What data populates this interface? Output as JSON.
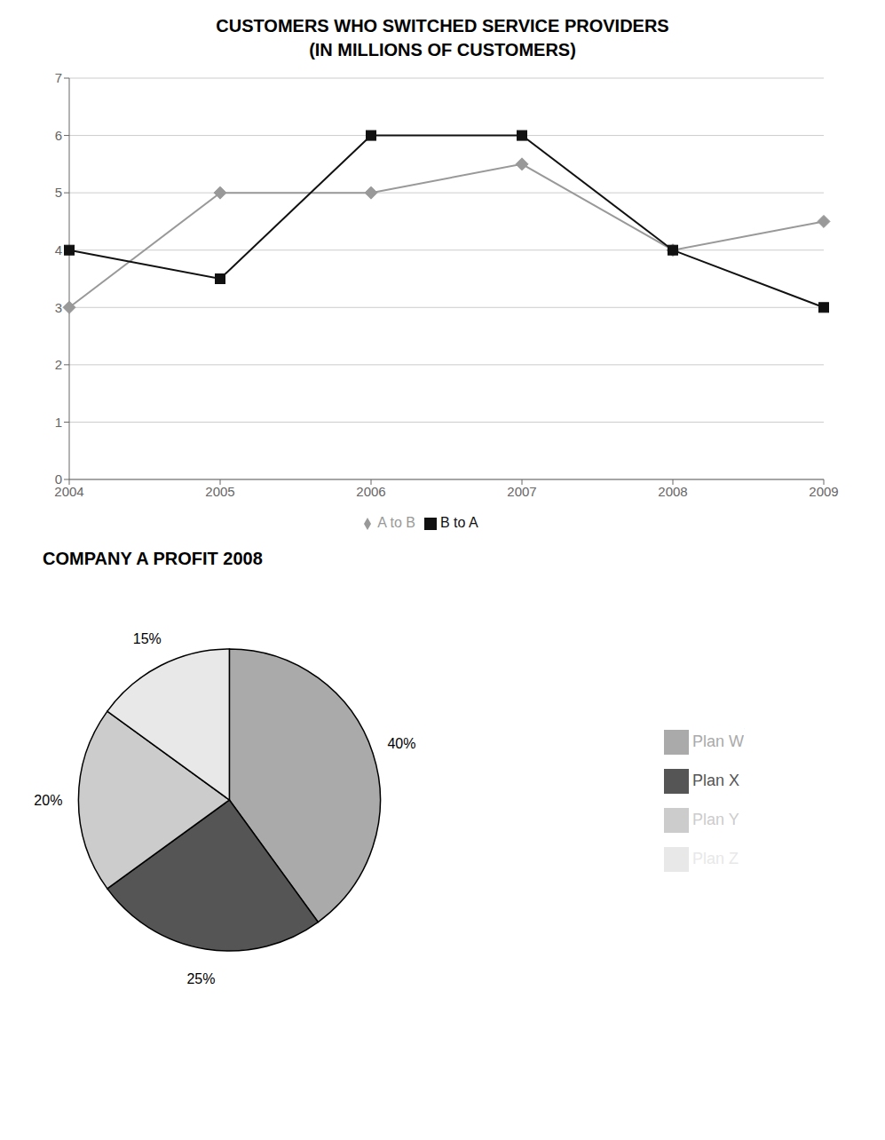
{
  "chart_data": [
    {
      "type": "line",
      "title": "CUSTOMERS WHO SWITCHED SERVICE PROVIDERS",
      "subtitle": "(IN MILLIONS OF CUSTOMERS)",
      "categories": [
        "2004",
        "2005",
        "2006",
        "2007",
        "2008",
        "2009"
      ],
      "series": [
        {
          "name": "A to B",
          "color": "#999999",
          "marker": "diamond",
          "values": [
            3.0,
            5.0,
            5.0,
            5.5,
            4.0,
            4.5
          ]
        },
        {
          "name": "B to A",
          "color": "#111111",
          "marker": "square",
          "values": [
            4.0,
            3.5,
            6.0,
            6.0,
            4.0,
            3.0
          ]
        }
      ],
      "ylim": [
        0,
        7
      ],
      "yticks": [
        0,
        1,
        2,
        3,
        4,
        5,
        6,
        7
      ],
      "grid": true,
      "legend": "bottom"
    },
    {
      "type": "pie",
      "title": "COMPANY A PROFIT 2008",
      "categories": [
        "Plan W",
        "Plan X",
        "Plan Y",
        "Plan Z"
      ],
      "values": [
        40,
        25,
        20,
        15
      ],
      "value_labels": [
        "40%",
        "25%",
        "20%",
        "15%"
      ],
      "colors": [
        "#aaaaaa",
        "#555555",
        "#cccccc",
        "#e8e8e8"
      ],
      "data_labels": true,
      "legend": "right"
    }
  ]
}
